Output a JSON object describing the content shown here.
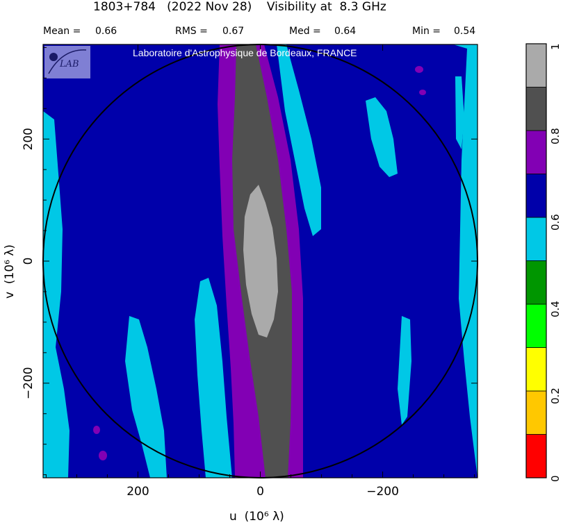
{
  "header": {
    "title": "1803+784   (2022 Nov 28)    Visibility at  8.3 GHz",
    "stats": [
      {
        "label": "Mean =",
        "value": "0.66"
      },
      {
        "label": "RMS =",
        "value": "0.67"
      },
      {
        "label": "Med =",
        "value": "0.64"
      },
      {
        "label": "Min =",
        "value": "0.54"
      }
    ]
  },
  "logo": {
    "text": "LAB"
  },
  "watermark": "Laboratoire d'Astrophysique de Bordeaux, FRANCE",
  "colors": {
    "frame": "#000000",
    "levels": [
      "#ff0000",
      "#ffc800",
      "#ffff00",
      "#00ff00",
      "#009600",
      "#00c8e6",
      "#0000aa",
      "#8200b4",
      "#505050",
      "#aaaaaa"
    ],
    "logo_bg": "#7f7fd4"
  },
  "chart_data": {
    "type": "heatmap",
    "title": "1803+784   (2022 Nov 28)    Visibility at  8.3 GHz",
    "xlabel": "u  (10⁶ λ)",
    "ylabel": "v  (10⁶ λ)",
    "xlim": [
      355,
      -355
    ],
    "ylim": [
      -355,
      355
    ],
    "x_ticks": [
      "200",
      "0",
      "−200"
    ],
    "y_ticks": [
      "200",
      "0",
      "−200"
    ],
    "x_tick_values": [
      200,
      0,
      -200
    ],
    "y_tick_values": [
      200,
      0,
      -200
    ],
    "circle_radius": 355,
    "colorbar": {
      "range": [
        0,
        1
      ],
      "ticks": [
        "0",
        "0.2",
        "0.4",
        "0.6",
        "0.8",
        "1"
      ],
      "tick_values": [
        0,
        0.2,
        0.4,
        0.6,
        0.8,
        1
      ],
      "n_levels": 10
    },
    "statistics": {
      "mean": 0.66,
      "rms": 0.67,
      "median": 0.64,
      "min": 0.54
    }
  }
}
